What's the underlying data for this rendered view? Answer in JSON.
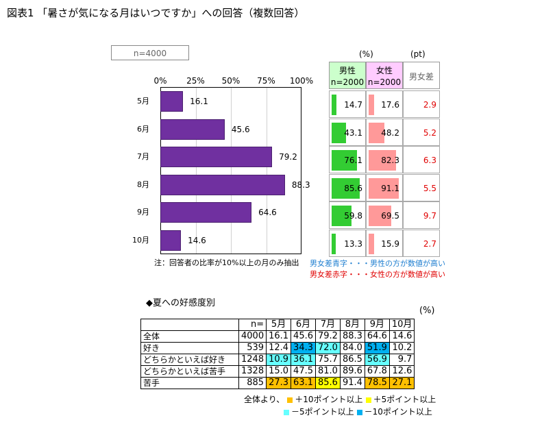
{
  "title": "図表1 「暑さが気になる月はいつですか」への回答（複数回答）",
  "sample_box": "n=4000",
  "unit_percent": "(%)",
  "unit_pt": "(pt)",
  "male_header": {
    "line1": "男性",
    "line2": "n=2000"
  },
  "female_header": {
    "line1": "女性",
    "line2": "n=2000"
  },
  "diff_header": "男女差",
  "footnote": "注：回答者の比率が10%以上の月のみ抽出",
  "legend_blue": "男女差青字・・・男性の方が数値が高い",
  "legend_red": "男女差赤字・・・女性の方が数値が高い",
  "colors": {
    "total_bar": "#7030a0",
    "male_bar": "#33cc33",
    "female_bar": "#ff9999",
    "male_header_bg": "#ccffcc",
    "female_header_bg": "#ffccff",
    "diff_red": "#e00000",
    "legend_blue": "#1f7fd0",
    "hl_plus10": "#ffc000",
    "hl_plus5": "#ffff00",
    "hl_minus5": "#66ffff",
    "hl_minus10": "#00b0f0"
  },
  "chart_data": [
    {
      "type": "bar",
      "orientation": "horizontal",
      "categories": [
        "5月",
        "6月",
        "7月",
        "8月",
        "9月",
        "10月"
      ],
      "values": [
        16.1,
        45.6,
        79.2,
        88.3,
        64.6,
        14.6
      ],
      "xlim": [
        0,
        100
      ],
      "xticks": [
        "0%",
        "25%",
        "50%",
        "75%",
        "100%"
      ],
      "grid": true
    },
    {
      "type": "bar",
      "orientation": "horizontal",
      "categories": [
        "5月",
        "6月",
        "7月",
        "8月",
        "9月",
        "10月"
      ],
      "series": [
        {
          "name": "男性",
          "values": [
            14.7,
            43.1,
            76.1,
            85.6,
            59.8,
            13.3
          ]
        },
        {
          "name": "女性",
          "values": [
            17.6,
            48.2,
            82.3,
            91.1,
            69.5,
            15.9
          ]
        }
      ],
      "diff": [
        "2.9",
        "5.2",
        "6.3",
        "5.5",
        "9.7",
        "2.7"
      ],
      "xlim": [
        0,
        100
      ]
    },
    {
      "type": "table",
      "section_title": "◆夏への好感度別",
      "unit": "(%)",
      "columns": [
        "",
        "n=",
        "5月",
        "6月",
        "7月",
        "8月",
        "9月",
        "10月"
      ],
      "rows": [
        {
          "label": "全体",
          "n": "4000",
          "values": [
            "16.1",
            "45.6",
            "79.2",
            "88.3",
            "64.6",
            "14.6"
          ],
          "hl": [
            "",
            "",
            "",
            "",
            "",
            ""
          ]
        },
        {
          "label": "好き",
          "n": "539",
          "values": [
            "12.4",
            "34.3",
            "72.0",
            "84.0",
            "51.9",
            "10.2"
          ],
          "hl": [
            "",
            "m10",
            "m5",
            "",
            "m10",
            ""
          ]
        },
        {
          "label": "どちらかといえば好き",
          "n": "1248",
          "values": [
            "10.9",
            "36.1",
            "75.7",
            "86.5",
            "56.9",
            "9.7"
          ],
          "hl": [
            "m5",
            "m5",
            "",
            "",
            "m5",
            ""
          ]
        },
        {
          "label": "どちらかといえば苦手",
          "n": "1328",
          "values": [
            "15.0",
            "47.5",
            "81.0",
            "89.6",
            "67.8",
            "12.6"
          ],
          "hl": [
            "",
            "",
            "",
            "",
            "",
            ""
          ]
        },
        {
          "label": "苦手",
          "n": "885",
          "values": [
            "27.3",
            "63.1",
            "85.6",
            "91.4",
            "78.5",
            "27.1"
          ],
          "hl": [
            "p10",
            "p10",
            "p5",
            "",
            "p10",
            "p10"
          ]
        }
      ]
    }
  ],
  "legend": {
    "prefix": "全体より、",
    "plus10": "＋10ポイント以上",
    "plus5": "＋5ポイント以上",
    "minus5": "－5ポイント以上",
    "minus10": "－10ポイント以上"
  }
}
